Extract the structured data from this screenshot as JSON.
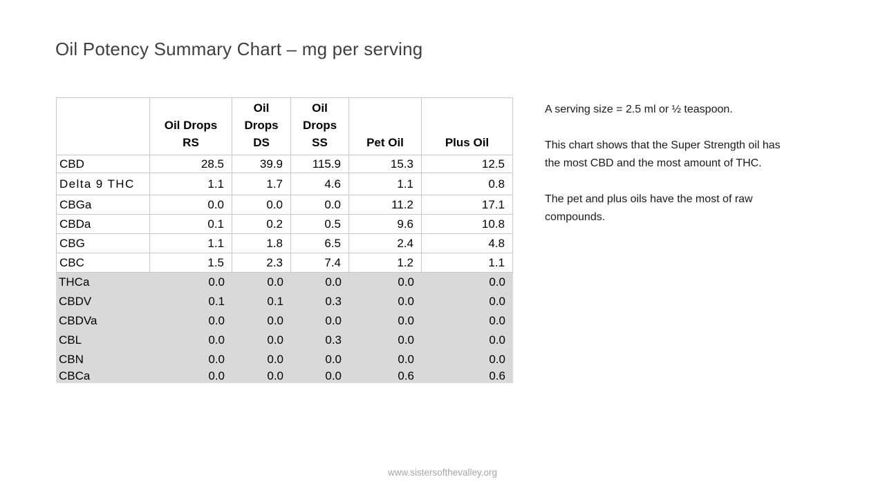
{
  "slide": {
    "title": "Oil Potency Summary Chart – mg per serving",
    "footer_url": "www.sistersofthevalley.org"
  },
  "notes": {
    "p1": "A serving size = 2.5 ml or ½ teaspoon.",
    "p2": "This chart shows that the Super Strength oil has\nthe most CBD and the most amount of THC.",
    "p3": "The pet and plus oils have the most of raw\ncompounds."
  },
  "table": {
    "headers": [
      "",
      "Oil Drops\nRS",
      "Oil\nDrops\nDS",
      "Oil\nDrops\nSS",
      "Pet Oil",
      "Plus Oil"
    ],
    "shaded_from_row": 6,
    "theme_font_rows": [
      1
    ]
  },
  "colors": {
    "shaded_row_bg": "#d9d9d9",
    "table_border": "#c6c6c6",
    "title_text": "#3f3f3f",
    "footer_text": "#a6a6a6"
  },
  "chart_data": {
    "type": "table",
    "title": "Oil Potency Summary Chart – mg per serving",
    "units": "mg per serving",
    "categories": [
      "CBD",
      "Delta 9 THC",
      "CBGa",
      "CBDa",
      "CBG",
      "CBC",
      "THCa",
      "CBDV",
      "CBDVa",
      "CBL",
      "CBN",
      "CBCa"
    ],
    "series": [
      {
        "name": "Oil Drops RS",
        "values": [
          28.5,
          1.1,
          0.0,
          0.1,
          1.1,
          1.5,
          0.0,
          0.1,
          0.0,
          0.0,
          0.0,
          0.0
        ]
      },
      {
        "name": "Oil Drops DS",
        "values": [
          39.9,
          1.7,
          0.0,
          0.2,
          1.8,
          2.3,
          0.0,
          0.1,
          0.0,
          0.0,
          0.0,
          0.0
        ]
      },
      {
        "name": "Oil Drops SS",
        "values": [
          115.9,
          4.6,
          0.0,
          0.5,
          6.5,
          7.4,
          0.0,
          0.3,
          0.0,
          0.3,
          0.0,
          0.0
        ]
      },
      {
        "name": "Pet Oil",
        "values": [
          15.3,
          1.1,
          11.2,
          9.6,
          2.4,
          1.2,
          0.0,
          0.0,
          0.0,
          0.0,
          0.0,
          0.6
        ]
      },
      {
        "name": "Plus Oil",
        "values": [
          12.5,
          0.8,
          17.1,
          10.8,
          4.8,
          1.1,
          0.0,
          0.0,
          0.0,
          0.0,
          0.0,
          0.6
        ]
      }
    ],
    "shaded_rows": [
      "THCa",
      "CBDV",
      "CBDVa",
      "CBL",
      "CBN",
      "CBCa"
    ],
    "value_format": "one_decimal"
  }
}
